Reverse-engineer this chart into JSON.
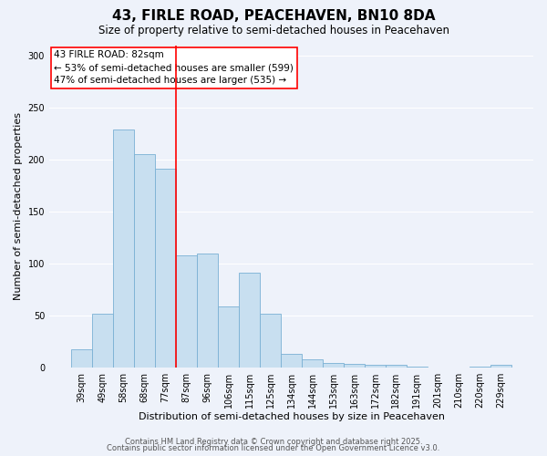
{
  "title": "43, FIRLE ROAD, PEACEHAVEN, BN10 8DA",
  "subtitle": "Size of property relative to semi-detached houses in Peacehaven",
  "xlabel": "Distribution of semi-detached houses by size in Peacehaven",
  "ylabel": "Number of semi-detached properties",
  "bar_labels": [
    "39sqm",
    "49sqm",
    "58sqm",
    "68sqm",
    "77sqm",
    "87sqm",
    "96sqm",
    "106sqm",
    "115sqm",
    "125sqm",
    "134sqm",
    "144sqm",
    "153sqm",
    "163sqm",
    "172sqm",
    "182sqm",
    "191sqm",
    "201sqm",
    "210sqm",
    "220sqm",
    "229sqm"
  ],
  "bar_values": [
    17,
    52,
    229,
    205,
    191,
    108,
    110,
    59,
    91,
    52,
    13,
    8,
    4,
    3,
    2,
    2,
    1,
    0,
    0,
    1,
    2
  ],
  "bar_color": "#c8dff0",
  "bar_edge_color": "#7ab0d4",
  "background_color": "#eef2fa",
  "grid_color": "#ffffff",
  "marker_line_index": 5,
  "marker_label": "43 FIRLE ROAD: 82sqm",
  "annotation_line1": "← 53% of semi-detached houses are smaller (599)",
  "annotation_line2": "47% of semi-detached houses are larger (535) →",
  "ylim": [
    0,
    310
  ],
  "yticks": [
    0,
    50,
    100,
    150,
    200,
    250,
    300
  ],
  "footer1": "Contains HM Land Registry data © Crown copyright and database right 2025.",
  "footer2": "Contains public sector information licensed under the Open Government Licence v3.0.",
  "title_fontsize": 11,
  "subtitle_fontsize": 8.5,
  "xlabel_fontsize": 8,
  "ylabel_fontsize": 8,
  "tick_fontsize": 7,
  "footer_fontsize": 6,
  "annotation_fontsize": 7.5
}
